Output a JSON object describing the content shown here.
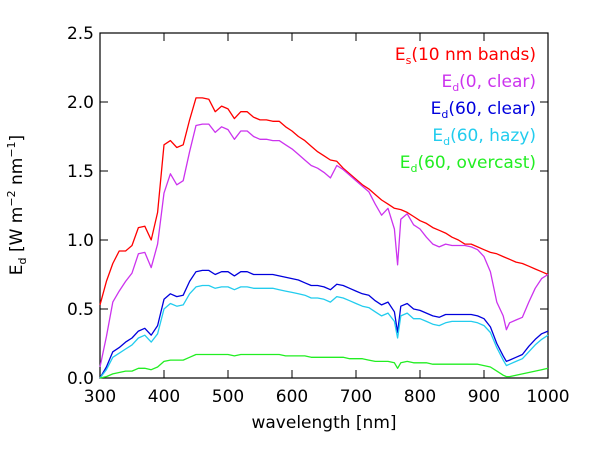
{
  "chart_data": {
    "type": "line",
    "xlabel": "wavelength [nm]",
    "ylabel": {
      "base": "E",
      "sub": "d",
      "rest": " [W m",
      "sup1": "−2",
      "mid": " nm",
      "sup2": "−1",
      "end": "]"
    },
    "xlim": [
      300,
      1000
    ],
    "ylim": [
      0,
      2.5
    ],
    "xticks": [
      300,
      400,
      500,
      600,
      700,
      800,
      900,
      1000
    ],
    "yticks": [
      0.0,
      0.5,
      1.0,
      1.5,
      2.0,
      2.5
    ],
    "ytick_labels": [
      "0.0",
      "0.5",
      "1.0",
      "1.5",
      "2.0",
      "2.5"
    ],
    "grid": false,
    "legend_position": "top-right",
    "series": [
      {
        "name": "Es(10 nm bands)",
        "legend": {
          "base": "E",
          "sub": "s",
          "rest": "(10 nm bands)"
        },
        "color": "#ff0000",
        "x": [
          300,
          310,
          320,
          330,
          340,
          350,
          360,
          370,
          380,
          390,
          400,
          410,
          420,
          430,
          440,
          450,
          460,
          470,
          480,
          490,
          500,
          510,
          520,
          530,
          540,
          550,
          560,
          570,
          580,
          590,
          600,
          610,
          620,
          630,
          640,
          650,
          660,
          670,
          680,
          690,
          700,
          710,
          720,
          730,
          740,
          750,
          760,
          770,
          780,
          790,
          800,
          810,
          820,
          830,
          840,
          850,
          860,
          870,
          880,
          890,
          900,
          910,
          920,
          930,
          940,
          950,
          960,
          970,
          980,
          990,
          1000
        ],
        "y": [
          0.53,
          0.7,
          0.83,
          0.92,
          0.92,
          0.96,
          1.09,
          1.1,
          1.0,
          1.2,
          1.69,
          1.72,
          1.67,
          1.69,
          1.87,
          2.03,
          2.03,
          2.02,
          1.93,
          1.97,
          1.95,
          1.88,
          1.93,
          1.93,
          1.89,
          1.87,
          1.87,
          1.86,
          1.86,
          1.82,
          1.79,
          1.75,
          1.72,
          1.68,
          1.64,
          1.61,
          1.58,
          1.57,
          1.52,
          1.48,
          1.44,
          1.4,
          1.37,
          1.33,
          1.29,
          1.26,
          1.23,
          1.22,
          1.2,
          1.17,
          1.14,
          1.12,
          1.09,
          1.07,
          1.05,
          1.02,
          1.0,
          0.97,
          0.97,
          0.95,
          0.93,
          0.91,
          0.9,
          0.88,
          0.86,
          0.84,
          0.83,
          0.81,
          0.79,
          0.77,
          0.75
        ]
      },
      {
        "name": "Ed(0, clear)",
        "legend": {
          "base": "E",
          "sub": "d",
          "rest": "(0, clear)"
        },
        "color": "#cc33ee",
        "x": [
          300,
          310,
          320,
          330,
          340,
          350,
          360,
          370,
          380,
          390,
          400,
          410,
          420,
          430,
          440,
          450,
          460,
          470,
          480,
          490,
          500,
          510,
          520,
          530,
          540,
          550,
          560,
          570,
          580,
          590,
          600,
          610,
          620,
          630,
          640,
          650,
          660,
          670,
          680,
          690,
          700,
          710,
          720,
          730,
          740,
          750,
          760,
          765,
          770,
          780,
          790,
          800,
          810,
          820,
          830,
          840,
          850,
          860,
          870,
          880,
          890,
          900,
          910,
          920,
          930,
          935,
          940,
          950,
          960,
          970,
          980,
          990,
          1000
        ],
        "y": [
          0.08,
          0.3,
          0.55,
          0.63,
          0.7,
          0.76,
          0.9,
          0.91,
          0.8,
          0.97,
          1.34,
          1.48,
          1.4,
          1.43,
          1.64,
          1.83,
          1.84,
          1.84,
          1.78,
          1.82,
          1.8,
          1.73,
          1.79,
          1.79,
          1.75,
          1.73,
          1.73,
          1.72,
          1.72,
          1.69,
          1.66,
          1.62,
          1.58,
          1.54,
          1.52,
          1.49,
          1.45,
          1.54,
          1.51,
          1.47,
          1.43,
          1.39,
          1.35,
          1.26,
          1.18,
          1.23,
          1.08,
          0.82,
          1.15,
          1.19,
          1.11,
          1.08,
          1.02,
          0.97,
          0.95,
          0.97,
          0.96,
          0.96,
          0.96,
          0.95,
          0.93,
          0.88,
          0.77,
          0.55,
          0.45,
          0.35,
          0.4,
          0.42,
          0.44,
          0.55,
          0.65,
          0.72,
          0.75
        ]
      },
      {
        "name": "Ed(60, clear)",
        "legend": {
          "base": "E",
          "sub": "d",
          "rest": "(60, clear)"
        },
        "color": "#0000dd",
        "x": [
          300,
          310,
          320,
          330,
          340,
          350,
          360,
          370,
          380,
          390,
          400,
          410,
          420,
          430,
          440,
          450,
          460,
          470,
          480,
          490,
          500,
          510,
          520,
          530,
          540,
          550,
          560,
          570,
          580,
          590,
          600,
          610,
          620,
          630,
          640,
          650,
          660,
          670,
          680,
          690,
          700,
          710,
          720,
          730,
          740,
          750,
          760,
          765,
          770,
          780,
          790,
          800,
          810,
          820,
          830,
          840,
          850,
          860,
          870,
          880,
          890,
          900,
          910,
          920,
          930,
          935,
          940,
          950,
          960,
          970,
          980,
          990,
          1000
        ],
        "y": [
          0.0,
          0.08,
          0.19,
          0.22,
          0.26,
          0.29,
          0.34,
          0.36,
          0.31,
          0.38,
          0.57,
          0.61,
          0.59,
          0.6,
          0.7,
          0.77,
          0.78,
          0.78,
          0.75,
          0.77,
          0.77,
          0.74,
          0.77,
          0.77,
          0.75,
          0.75,
          0.75,
          0.75,
          0.74,
          0.73,
          0.72,
          0.71,
          0.69,
          0.67,
          0.67,
          0.66,
          0.64,
          0.68,
          0.67,
          0.65,
          0.63,
          0.61,
          0.6,
          0.56,
          0.53,
          0.55,
          0.48,
          0.33,
          0.52,
          0.54,
          0.5,
          0.49,
          0.47,
          0.45,
          0.44,
          0.46,
          0.46,
          0.46,
          0.46,
          0.46,
          0.45,
          0.43,
          0.37,
          0.25,
          0.16,
          0.12,
          0.13,
          0.15,
          0.17,
          0.23,
          0.28,
          0.32,
          0.34
        ]
      },
      {
        "name": "Ed(60, hazy)",
        "legend": {
          "base": "E",
          "sub": "d",
          "rest": "(60, hazy)"
        },
        "color": "#22ccee",
        "x": [
          300,
          310,
          320,
          330,
          340,
          350,
          360,
          370,
          380,
          390,
          400,
          410,
          420,
          430,
          440,
          450,
          460,
          470,
          480,
          490,
          500,
          510,
          520,
          530,
          540,
          550,
          560,
          570,
          580,
          590,
          600,
          610,
          620,
          630,
          640,
          650,
          660,
          670,
          680,
          690,
          700,
          710,
          720,
          730,
          740,
          750,
          760,
          765,
          770,
          780,
          790,
          800,
          810,
          820,
          830,
          840,
          850,
          860,
          870,
          880,
          890,
          900,
          910,
          920,
          930,
          935,
          940,
          950,
          960,
          970,
          980,
          990,
          1000
        ],
        "y": [
          0.0,
          0.06,
          0.15,
          0.18,
          0.21,
          0.24,
          0.29,
          0.31,
          0.26,
          0.32,
          0.5,
          0.54,
          0.52,
          0.53,
          0.61,
          0.66,
          0.67,
          0.67,
          0.65,
          0.66,
          0.66,
          0.64,
          0.66,
          0.66,
          0.65,
          0.65,
          0.65,
          0.65,
          0.64,
          0.63,
          0.62,
          0.61,
          0.6,
          0.58,
          0.58,
          0.57,
          0.55,
          0.59,
          0.58,
          0.56,
          0.54,
          0.52,
          0.51,
          0.48,
          0.45,
          0.47,
          0.41,
          0.29,
          0.45,
          0.47,
          0.43,
          0.43,
          0.41,
          0.39,
          0.38,
          0.4,
          0.41,
          0.41,
          0.41,
          0.41,
          0.4,
          0.38,
          0.33,
          0.22,
          0.13,
          0.09,
          0.1,
          0.12,
          0.14,
          0.19,
          0.24,
          0.28,
          0.31
        ]
      },
      {
        "name": "Ed(60, overcast)",
        "legend": {
          "base": "E",
          "sub": "d",
          "rest": "(60, overcast)"
        },
        "color": "#22ee22",
        "x": [
          300,
          310,
          320,
          330,
          340,
          350,
          360,
          370,
          380,
          390,
          400,
          410,
          420,
          430,
          440,
          450,
          460,
          470,
          480,
          490,
          500,
          510,
          520,
          530,
          540,
          550,
          560,
          570,
          580,
          590,
          600,
          610,
          620,
          630,
          640,
          650,
          660,
          670,
          680,
          690,
          700,
          710,
          720,
          730,
          740,
          750,
          760,
          765,
          770,
          780,
          790,
          800,
          810,
          820,
          830,
          840,
          850,
          860,
          870,
          880,
          890,
          900,
          910,
          920,
          930,
          935,
          940,
          950,
          960,
          970,
          980,
          990,
          1000
        ],
        "y": [
          0.0,
          0.01,
          0.03,
          0.04,
          0.05,
          0.05,
          0.07,
          0.07,
          0.06,
          0.08,
          0.12,
          0.13,
          0.13,
          0.13,
          0.15,
          0.17,
          0.17,
          0.17,
          0.17,
          0.17,
          0.17,
          0.16,
          0.17,
          0.17,
          0.17,
          0.17,
          0.17,
          0.17,
          0.17,
          0.16,
          0.16,
          0.16,
          0.16,
          0.15,
          0.15,
          0.15,
          0.15,
          0.15,
          0.15,
          0.14,
          0.14,
          0.14,
          0.13,
          0.12,
          0.12,
          0.12,
          0.11,
          0.07,
          0.11,
          0.12,
          0.11,
          0.11,
          0.11,
          0.1,
          0.1,
          0.1,
          0.1,
          0.1,
          0.1,
          0.1,
          0.1,
          0.09,
          0.08,
          0.05,
          0.02,
          0.01,
          0.01,
          0.02,
          0.03,
          0.04,
          0.05,
          0.06,
          0.07
        ]
      }
    ]
  }
}
